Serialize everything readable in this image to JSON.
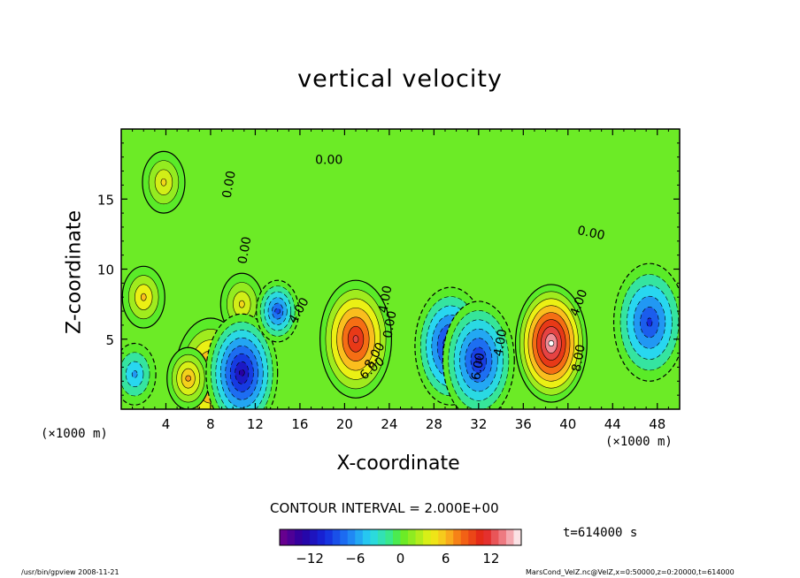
{
  "chart_data": {
    "type": "heatmap",
    "title": "vertical velocity",
    "xlabel": "X-coordinate",
    "ylabel": "Z-coordinate",
    "x_unit_label": "(×1000 m)",
    "xlim": [
      0,
      50
    ],
    "ylim": [
      0,
      20
    ],
    "x_ticks": [
      4,
      8,
      12,
      16,
      20,
      24,
      28,
      32,
      36,
      40,
      44,
      48
    ],
    "y_ticks": [
      5,
      10,
      15
    ],
    "contour_interval_text": "CONTOUR INTERVAL = 2.000E+00",
    "contour_labels": [
      {
        "text": "0.00",
        "x": 10.0,
        "z": 16.0,
        "angle": -80
      },
      {
        "text": "0.00",
        "x": 18.6,
        "z": 17.5,
        "angle": 0
      },
      {
        "text": "0.00",
        "x": 11.4,
        "z": 11.3,
        "angle": -80
      },
      {
        "text": "0.00",
        "x": 42.0,
        "z": 12.3,
        "angle": 12
      },
      {
        "text": "4.00",
        "x": 16.2,
        "z": 6.9,
        "angle": -60
      },
      {
        "text": "4.00",
        "x": 24.0,
        "z": 7.8,
        "angle": -80
      },
      {
        "text": "0.00",
        "x": 24.4,
        "z": 6.0,
        "angle": -80
      },
      {
        "text": "8.00",
        "x": 23.0,
        "z": 3.7,
        "angle": -60
      },
      {
        "text": "6.00",
        "x": 22.7,
        "z": 2.7,
        "angle": -40
      },
      {
        "text": "4.00",
        "x": 34.3,
        "z": 4.7,
        "angle": -80
      },
      {
        "text": "4.00",
        "x": 41.3,
        "z": 7.5,
        "angle": -70
      },
      {
        "text": "8.00",
        "x": 41.3,
        "z": 3.6,
        "angle": -80
      },
      {
        "text": "6.00",
        "x": 32.3,
        "z": 3.0,
        "angle": -80
      }
    ],
    "features": [
      {
        "kind": "updraft",
        "x": 21.0,
        "z": 5.0,
        "peak": 12
      },
      {
        "kind": "updraft",
        "x": 38.5,
        "z": 4.7,
        "peak": 16
      },
      {
        "kind": "updraft",
        "x": 8.0,
        "z": 2.3,
        "peak": 10
      },
      {
        "kind": "updraft",
        "x": 6.0,
        "z": 2.2,
        "peak": 7
      },
      {
        "kind": "updraft",
        "x": 2.0,
        "z": 8.0,
        "peak": 6
      },
      {
        "kind": "updraft",
        "x": 10.8,
        "z": 7.5,
        "peak": 5
      },
      {
        "kind": "updraft",
        "x": 3.8,
        "z": 16.2,
        "peak": 5
      },
      {
        "kind": "downdraft",
        "x": 10.8,
        "z": 2.6,
        "peak": -13
      },
      {
        "kind": "downdraft",
        "x": 29.5,
        "z": 4.5,
        "peak": -12
      },
      {
        "kind": "downdraft",
        "x": 32.0,
        "z": 3.5,
        "peak": -11
      },
      {
        "kind": "downdraft",
        "x": 14.0,
        "z": 7.0,
        "peak": -9
      },
      {
        "kind": "downdraft",
        "x": 47.3,
        "z": 6.2,
        "peak": -10
      },
      {
        "kind": "downdraft",
        "x": 1.2,
        "z": 2.5,
        "peak": -6
      }
    ],
    "colorbar": {
      "min": -16,
      "max": 16,
      "ticks": [
        -12,
        -6,
        0,
        6,
        12
      ]
    }
  },
  "annotations": {
    "time": "t=614000 s",
    "footer_left": "/usr/bin/gpview   2008-11-21",
    "footer_right": "MarsCond_VelZ.nc@VelZ,x=0:50000,z=0:20000,t=614000"
  }
}
